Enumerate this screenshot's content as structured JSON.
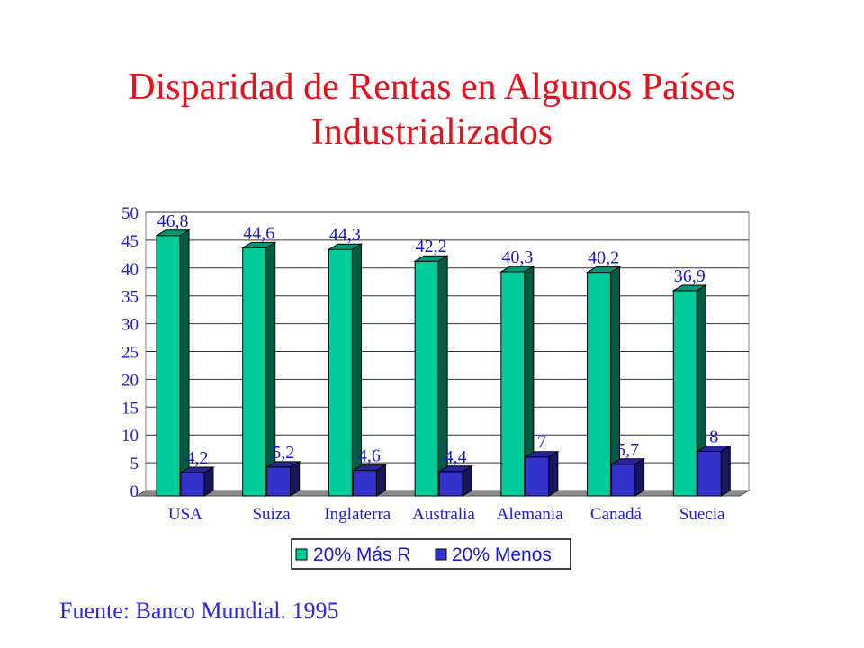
{
  "slide": {
    "title_line1": "Disparidad de Rentas en Algunos Países",
    "title_line2": "Industrializados",
    "source": "Fuente: Banco Mundial. 1995"
  },
  "chart_data": {
    "type": "bar",
    "title": "",
    "xlabel": "",
    "ylabel": "",
    "categories": [
      "USA",
      "Suiza",
      "Inglaterra",
      "Australia",
      "Alemania",
      "Canadá",
      "Suecia"
    ],
    "series": [
      {
        "name": "20% Más R",
        "values": [
          46.8,
          44.6,
          44.3,
          42.2,
          40.3,
          40.2,
          36.9
        ],
        "labels": [
          "46,8",
          "44,6",
          "44,3",
          "42,2",
          "40,3",
          "40,2",
          "36,9"
        ],
        "color": "#00cc99"
      },
      {
        "name": "20% Menos",
        "values": [
          4.2,
          5.2,
          4.6,
          4.4,
          7,
          5.7,
          8
        ],
        "labels": [
          "4,2",
          "5,2",
          "4,6",
          "4,4",
          "7",
          "5,7",
          "8"
        ],
        "color": "#3333cc"
      }
    ],
    "ylim": [
      0,
      50
    ],
    "yticks": [
      0,
      5,
      10,
      15,
      20,
      25,
      30,
      35,
      40,
      45,
      50
    ],
    "grid": true,
    "legend_position": "bottom",
    "style": "3d-column"
  }
}
